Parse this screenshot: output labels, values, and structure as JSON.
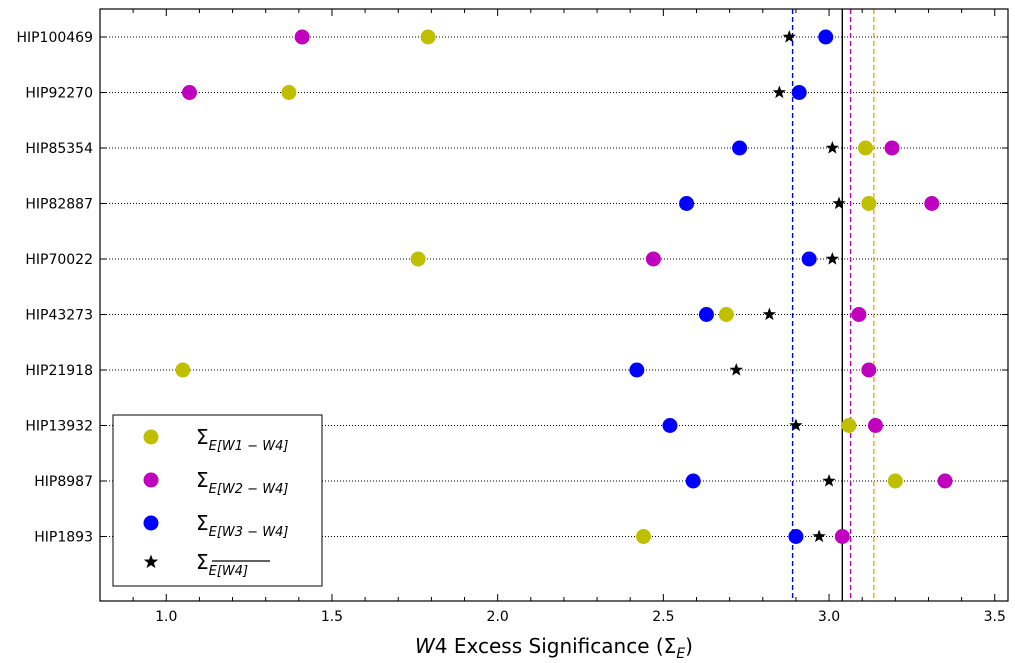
{
  "chart_data": {
    "type": "scatter",
    "xlabel": {
      "italic": "W",
      "rest": "4 Excess Significance (Σ",
      "sub": "E",
      "close": ")"
    },
    "xlim": [
      0.8,
      3.54
    ],
    "xticks": [
      1.0,
      1.5,
      2.0,
      2.5,
      3.0,
      3.5
    ],
    "xtick_labels": [
      "1.0",
      "1.5",
      "2.0",
      "2.5",
      "3.0",
      "3.5"
    ],
    "categories": [
      "HIP100469",
      "HIP92270",
      "HIP85354",
      "HIP82887",
      "HIP70022",
      "HIP43273",
      "HIP21918",
      "HIP13932",
      "HIP8987",
      "HIP1893"
    ],
    "grid": "dotted horizontal per category",
    "legend_position": "bottom-left",
    "series": [
      {
        "key": "w1w4",
        "name": "Σ_E[W1 − W4]",
        "legend_main": "Σ",
        "legend_sub": "E[W1 − W4]",
        "overline": false,
        "marker": "circle",
        "color": "#bfbf00",
        "values": [
          1.79,
          1.37,
          3.11,
          3.12,
          1.76,
          2.69,
          1.05,
          3.06,
          3.2,
          2.44
        ]
      },
      {
        "key": "w2w4",
        "name": "Σ_E[W2 − W4]",
        "legend_main": "Σ",
        "legend_sub": "E[W2 − W4]",
        "overline": false,
        "marker": "circle",
        "color": "#bf00bf",
        "values": [
          1.41,
          1.07,
          3.19,
          3.31,
          2.47,
          3.09,
          3.12,
          3.14,
          3.35,
          3.04
        ]
      },
      {
        "key": "w3w4",
        "name": "Σ_E[W3 − W4]",
        "legend_main": "Σ",
        "legend_sub": "E[W3 − W4]",
        "overline": false,
        "marker": "circle",
        "color": "#0000ff",
        "values": [
          2.99,
          2.91,
          2.73,
          2.57,
          2.94,
          2.63,
          2.42,
          2.52,
          2.59,
          2.9
        ]
      },
      {
        "key": "mean",
        "name": "Σ_E[W4] (overlined)",
        "legend_main": "Σ",
        "legend_sub": "E[W4]",
        "overline": true,
        "marker": "star",
        "color": "#000000",
        "values": [
          2.88,
          2.85,
          3.01,
          3.03,
          3.01,
          2.82,
          2.72,
          2.9,
          3.0,
          2.97
        ]
      }
    ],
    "vertical_lines": [
      {
        "x": 3.04,
        "color": "#000000",
        "style": "solid"
      },
      {
        "x": 2.89,
        "color": "#0000ff",
        "style": "dashed"
      },
      {
        "x": 3.065,
        "color": "#bf00bf",
        "style": "dashed"
      },
      {
        "x": 3.135,
        "color": "#ffa500",
        "style": "dashed"
      }
    ]
  }
}
